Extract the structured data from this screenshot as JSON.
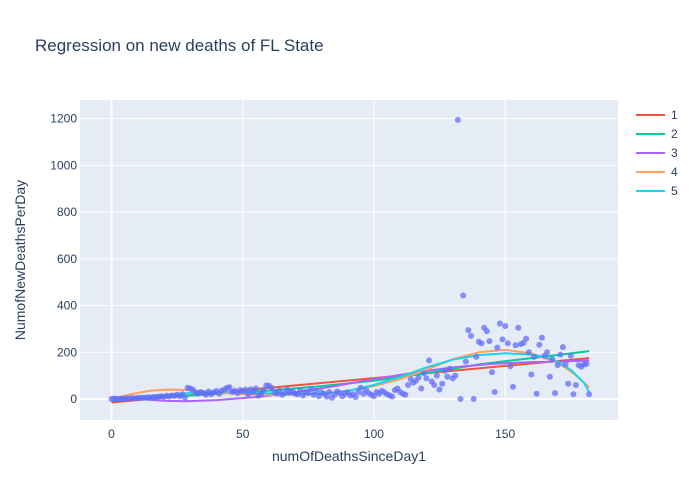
{
  "chart_data": {
    "type": "scatter",
    "title": "Regression on new deaths of FL State",
    "xlabel": "numOfDeathsSinceDay1",
    "ylabel": "NumofNewDeathsPerDay",
    "xlim": [
      -12,
      193
    ],
    "ylim": [
      -90,
      1280
    ],
    "x_ticks": [
      0,
      50,
      100,
      150
    ],
    "y_ticks": [
      0,
      200,
      400,
      600,
      800,
      1000,
      1200
    ],
    "grid": true,
    "legend_position": "top-right",
    "background_color": "#e5ecf6",
    "marker_color": "#636efa",
    "points": [
      [
        0,
        0
      ],
      [
        1,
        2
      ],
      [
        2,
        1
      ],
      [
        3,
        0
      ],
      [
        4,
        2
      ],
      [
        5,
        1
      ],
      [
        6,
        3
      ],
      [
        7,
        2
      ],
      [
        8,
        4
      ],
      [
        9,
        3
      ],
      [
        10,
        5
      ],
      [
        11,
        4
      ],
      [
        12,
        6
      ],
      [
        13,
        5
      ],
      [
        14,
        7
      ],
      [
        15,
        6
      ],
      [
        16,
        9
      ],
      [
        17,
        8
      ],
      [
        18,
        10
      ],
      [
        19,
        12
      ],
      [
        20,
        9
      ],
      [
        21,
        14
      ],
      [
        22,
        11
      ],
      [
        23,
        15
      ],
      [
        24,
        13
      ],
      [
        25,
        18
      ],
      [
        26,
        12
      ],
      [
        27,
        20
      ],
      [
        28,
        6
      ],
      [
        29,
        48
      ],
      [
        30,
        45
      ],
      [
        31,
        40
      ],
      [
        32,
        28
      ],
      [
        33,
        22
      ],
      [
        34,
        30
      ],
      [
        35,
        25
      ],
      [
        36,
        18
      ],
      [
        37,
        32
      ],
      [
        38,
        20
      ],
      [
        39,
        28
      ],
      [
        40,
        34
      ],
      [
        41,
        22
      ],
      [
        42,
        36
      ],
      [
        43,
        40
      ],
      [
        44,
        48
      ],
      [
        45,
        50
      ],
      [
        46,
        30
      ],
      [
        47,
        35
      ],
      [
        48,
        25
      ],
      [
        49,
        38
      ],
      [
        50,
        33
      ],
      [
        51,
        40
      ],
      [
        52,
        20
      ],
      [
        53,
        42
      ],
      [
        54,
        28
      ],
      [
        55,
        45
      ],
      [
        56,
        14
      ],
      [
        57,
        22
      ],
      [
        58,
        38
      ],
      [
        59,
        58
      ],
      [
        60,
        57
      ],
      [
        61,
        48
      ],
      [
        62,
        30
      ],
      [
        63,
        22
      ],
      [
        64,
        35
      ],
      [
        65,
        18
      ],
      [
        66,
        25
      ],
      [
        67,
        40
      ],
      [
        68,
        28
      ],
      [
        69,
        33
      ],
      [
        70,
        22
      ],
      [
        71,
        20
      ],
      [
        72,
        38
      ],
      [
        73,
        15
      ],
      [
        74,
        30
      ],
      [
        75,
        25
      ],
      [
        76,
        42
      ],
      [
        77,
        18
      ],
      [
        78,
        35
      ],
      [
        79,
        12
      ],
      [
        80,
        28
      ],
      [
        81,
        22
      ],
      [
        82,
        10
      ],
      [
        83,
        30
      ],
      [
        84,
        5
      ],
      [
        85,
        18
      ],
      [
        86,
        32
      ],
      [
        87,
        25
      ],
      [
        88,
        12
      ],
      [
        89,
        22
      ],
      [
        90,
        28
      ],
      [
        91,
        15
      ],
      [
        92,
        20
      ],
      [
        93,
        8
      ],
      [
        94,
        30
      ],
      [
        95,
        48
      ],
      [
        96,
        22
      ],
      [
        97,
        38
      ],
      [
        98,
        25
      ],
      [
        99,
        18
      ],
      [
        100,
        12
      ],
      [
        101,
        30
      ],
      [
        102,
        22
      ],
      [
        103,
        35
      ],
      [
        104,
        28
      ],
      [
        105,
        20
      ],
      [
        106,
        15
      ],
      [
        107,
        10
      ],
      [
        108,
        38
      ],
      [
        109,
        45
      ],
      [
        110,
        30
      ],
      [
        111,
        22
      ],
      [
        112,
        18
      ],
      [
        113,
        60
      ],
      [
        114,
        85
      ],
      [
        115,
        70
      ],
      [
        116,
        78
      ],
      [
        117,
        92
      ],
      [
        118,
        45
      ],
      [
        119,
        110
      ],
      [
        120,
        88
      ],
      [
        121,
        165
      ],
      [
        122,
        75
      ],
      [
        123,
        60
      ],
      [
        124,
        100
      ],
      [
        125,
        40
      ],
      [
        126,
        65
      ],
      [
        127,
        120
      ],
      [
        128,
        95
      ],
      [
        129,
        130
      ],
      [
        130,
        88
      ],
      [
        131,
        100
      ],
      [
        132,
        1195
      ],
      [
        133,
        0
      ],
      [
        134,
        443
      ],
      [
        135,
        160
      ],
      [
        136,
        295
      ],
      [
        137,
        270
      ],
      [
        138,
        0
      ],
      [
        139,
        180
      ],
      [
        140,
        245
      ],
      [
        141,
        238
      ],
      [
        142,
        305
      ],
      [
        143,
        290
      ],
      [
        144,
        248
      ],
      [
        145,
        115
      ],
      [
        146,
        30
      ],
      [
        147,
        220
      ],
      [
        148,
        323
      ],
      [
        149,
        255
      ],
      [
        150,
        312
      ],
      [
        151,
        238
      ],
      [
        152,
        140
      ],
      [
        153,
        52
      ],
      [
        154,
        230
      ],
      [
        155,
        305
      ],
      [
        156,
        235
      ],
      [
        157,
        240
      ],
      [
        158,
        258
      ],
      [
        159,
        200
      ],
      [
        160,
        105
      ],
      [
        161,
        180
      ],
      [
        162,
        22
      ],
      [
        163,
        232
      ],
      [
        164,
        262
      ],
      [
        165,
        185
      ],
      [
        166,
        200
      ],
      [
        167,
        95
      ],
      [
        168,
        170
      ],
      [
        169,
        25
      ],
      [
        170,
        145
      ],
      [
        171,
        190
      ],
      [
        172,
        222
      ],
      [
        173,
        148
      ],
      [
        174,
        65
      ],
      [
        175,
        185
      ],
      [
        176,
        20
      ],
      [
        177,
        60
      ],
      [
        178,
        145
      ],
      [
        179,
        138
      ],
      [
        180,
        148
      ],
      [
        181,
        150
      ],
      [
        182,
        20
      ]
    ],
    "series": [
      {
        "name": "1",
        "color": "#ef553b",
        "x": [
          0,
          182
        ],
        "y": [
          -15,
          175
        ]
      },
      {
        "name": "2",
        "color": "#00cc96",
        "x": [
          0,
          20,
          40,
          60,
          80,
          100,
          120,
          140,
          160,
          182
        ],
        "y": [
          -6,
          7,
          22,
          36,
          55,
          78,
          110,
          148,
          175,
          205
        ]
      },
      {
        "name": "3",
        "color": "#ab63fa",
        "x": [
          0,
          10,
          20,
          28,
          40,
          55,
          70,
          85,
          100,
          115,
          130,
          145,
          160,
          172,
          182
        ],
        "y": [
          8,
          0,
          -8,
          -10,
          -5,
          8,
          28,
          55,
          85,
          112,
          135,
          150,
          158,
          160,
          165
        ]
      },
      {
        "name": "4",
        "color": "#ffa15a",
        "x": [
          0,
          8,
          15,
          22,
          30,
          40,
          50,
          60,
          70,
          80,
          90,
          100,
          110,
          120,
          130,
          140,
          150,
          160,
          170,
          176,
          182
        ],
        "y": [
          0,
          22,
          36,
          40,
          38,
          28,
          20,
          18,
          18,
          22,
          35,
          55,
          85,
          125,
          170,
          200,
          210,
          195,
          155,
          110,
          50
        ]
      },
      {
        "name": "5",
        "color": "#19d3f3",
        "x": [
          0,
          10,
          20,
          30,
          40,
          50,
          60,
          70,
          80,
          90,
          100,
          110,
          120,
          130,
          140,
          150,
          160,
          165,
          170,
          175,
          180,
          182
        ],
        "y": [
          -5,
          5,
          15,
          26,
          32,
          30,
          24,
          20,
          22,
          35,
          60,
          95,
          135,
          168,
          188,
          196,
          190,
          180,
          160,
          125,
          70,
          30
        ]
      }
    ]
  }
}
